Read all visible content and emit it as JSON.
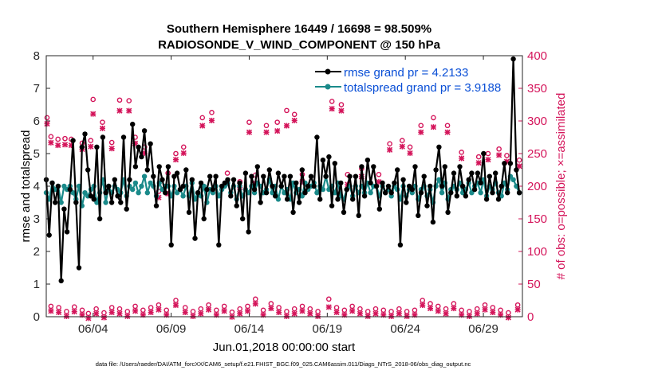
{
  "chart_data": {
    "type": "line",
    "title": "Southern Hemisphere 16449 / 16698 = 98.509%",
    "subtitle": "RADIOSONDE_V_WIND_COMPONENT @ 150 hPa",
    "xlabel": "Jun.01,2018 00:00:00 start",
    "ylabel_left": "rmse and totalspread",
    "ylabel_right": "# of obs: o=possible; ×=assimilated",
    "footer": "data file: /Users/raeder/DAI/ATM_forcXX/CAM6_setup/f.e21.FHIST_BGC.f09_025.CAM6assim.011/Diags_NTrS_2018-06/obs_diag_output.nc",
    "xlim": [
      1,
      31.5
    ],
    "ylim_left": [
      0,
      8
    ],
    "ylim_right": [
      0,
      400
    ],
    "x_ticks": [
      {
        "value": 4,
        "label": "06/04"
      },
      {
        "value": 9,
        "label": "06/09"
      },
      {
        "value": 14,
        "label": "06/14"
      },
      {
        "value": 19,
        "label": "06/19"
      },
      {
        "value": 24,
        "label": "06/24"
      },
      {
        "value": 29,
        "label": "06/29"
      }
    ],
    "y_left_ticks": [
      "0",
      "1",
      "2",
      "3",
      "4",
      "5",
      "6",
      "7",
      "8"
    ],
    "y_right_ticks": [
      "0",
      "50",
      "100",
      "150",
      "200",
      "250",
      "300",
      "350",
      "400"
    ],
    "colors": {
      "rmse": "#000000",
      "totalspread": "#1a8a8a",
      "obs": "#d4145a",
      "legend_text": "#0a4fd6"
    },
    "legend_position": "top-right",
    "series": [
      {
        "name": "rmse grand pr = 4.2133",
        "axis": "left",
        "values": [
          4.2,
          2.5,
          4.1,
          3.5,
          4.0,
          1.1,
          3.3,
          2.6,
          3.9,
          5.4,
          3.5,
          1.5,
          5.2,
          5.6,
          4.5,
          3.7,
          3.6,
          5.2,
          3.0,
          5.5,
          3.8,
          4.0,
          3.5,
          4.2,
          3.7,
          3.5,
          5.5,
          3.3,
          4.2,
          5.9,
          4.6,
          5.2,
          4.9,
          5.7,
          4.5,
          5.3,
          4.3,
          3.4,
          4.6,
          4.2,
          3.8,
          4.6,
          2.2,
          4.3,
          4.4,
          3.9,
          4.0,
          4.5,
          3.2,
          4.2,
          2.4,
          3.8,
          4.1,
          3.0,
          3.9,
          4.3,
          3.9,
          4.3,
          2.2,
          4.0,
          4.1,
          4.2,
          3.7,
          4.2,
          3.4,
          4.1,
          3.0,
          4.4,
          2.6,
          4.3,
          3.9,
          4.6,
          3.5,
          4.3,
          3.8,
          4.5,
          4.0,
          3.7,
          4.4,
          4.0,
          4.3,
          3.6,
          4.3,
          3.2,
          4.1,
          3.5,
          4.5,
          3.8,
          4.0,
          4.3,
          4.0,
          5.5,
          3.6,
          4.8,
          4.3,
          4.9,
          3.4,
          4.7,
          3.6,
          4.1,
          3.2,
          3.9,
          4.3,
          3.6,
          4.3,
          3.1,
          4.6,
          3.7,
          4.8,
          4.1,
          4.6,
          4.0,
          3.3,
          4.1,
          3.8,
          4.0,
          3.8,
          4.1,
          4.5,
          2.2,
          4.2,
          3.5,
          4.0,
          3.9,
          4.6,
          3.1,
          3.8,
          4.3,
          3.4,
          4.0,
          2.9,
          4.5,
          5.2,
          4.0,
          4.6,
          3.2,
          3.8,
          4.4,
          3.7,
          4.6,
          4.0,
          3.7,
          4.2,
          4.4,
          3.9,
          4.4,
          4.1,
          5.0,
          3.6,
          4.3,
          3.8,
          4.4,
          3.6,
          4.0,
          4.7,
          3.8,
          4.7,
          7.9,
          4.5,
          3.8
        ]
      },
      {
        "name": "totalspread grand pr = 3.9188",
        "axis": "left",
        "values": [
          3.8,
          3.6,
          4.1,
          3.9,
          4.0,
          3.5,
          4.0,
          3.9,
          4.0,
          3.8,
          3.6,
          4.0,
          3.4,
          3.8,
          3.7,
          3.9,
          4.0,
          3.5,
          3.8,
          4.2,
          3.5,
          4.0,
          3.8,
          4.0,
          3.9,
          3.8,
          4.2,
          3.7,
          4.0,
          3.9,
          4.1,
          3.8,
          4.0,
          4.3,
          3.8,
          4.1,
          4.0,
          3.7,
          4.1,
          3.9,
          4.0,
          4.0,
          3.7,
          4.0,
          3.8,
          3.9,
          3.7,
          4.0,
          3.7,
          4.1,
          3.6,
          3.8,
          3.7,
          4.0,
          3.5,
          3.9,
          3.8,
          4.0,
          3.7,
          3.9,
          4.0,
          4.1,
          3.8,
          4.0,
          3.6,
          4.0,
          3.7,
          3.9,
          3.8,
          4.0,
          3.8,
          4.1,
          4.0,
          3.8,
          3.9,
          4.2,
          3.8,
          4.0,
          3.6,
          4.0,
          3.8,
          3.9,
          3.6,
          4.1,
          3.8,
          3.9,
          3.7,
          4.1,
          3.9,
          4.0,
          4.1,
          3.8,
          4.0,
          3.9,
          4.3,
          3.9,
          4.0,
          3.8,
          4.1,
          3.7,
          3.6,
          3.9,
          4.0,
          3.7,
          4.0,
          3.8,
          4.0,
          3.8,
          4.1,
          3.8,
          4.0,
          4.0,
          3.7,
          4.0,
          3.8,
          3.9,
          3.7,
          4.0,
          3.9,
          3.6,
          4.0,
          3.7,
          3.9,
          3.8,
          4.0,
          3.6,
          3.9,
          4.0,
          3.7,
          3.9,
          3.5,
          4.0,
          4.2,
          3.8,
          4.1,
          3.6,
          3.9,
          4.0,
          3.9,
          4.1,
          3.8,
          3.9,
          4.1,
          3.8,
          4.0,
          4.1,
          3.8,
          4.2,
          3.7,
          4.0,
          3.9,
          4.1,
          3.8,
          3.7,
          4.1,
          3.9,
          4.3,
          4.2,
          4.0,
          3.8
        ]
      }
    ],
    "obs_points": [
      {
        "x": 1.05,
        "possible": 305,
        "assimilated": 303
      },
      {
        "x": 1.3,
        "possible": 276,
        "assimilated": 274
      },
      {
        "x": 1.75,
        "possible": 272,
        "assimilated": 270
      },
      {
        "x": 2.2,
        "possible": 273,
        "assimilated": 271
      },
      {
        "x": 2.6,
        "possible": 272,
        "assimilated": 270
      },
      {
        "x": 3.3,
        "possible": 266,
        "assimilated": 264
      },
      {
        "x": 3.85,
        "possible": 270,
        "assimilated": 268
      },
      {
        "x": 4.0,
        "possible": 333,
        "assimilated": 318
      },
      {
        "x": 4.6,
        "possible": 298,
        "assimilated": 296
      },
      {
        "x": 5.2,
        "possible": 267,
        "assimilated": 265
      },
      {
        "x": 5.7,
        "possible": 332,
        "assimilated": 323
      },
      {
        "x": 6.3,
        "possible": 331,
        "assimilated": 323
      },
      {
        "x": 6.7,
        "possible": 275,
        "assimilated": 273
      },
      {
        "x": 7.3,
        "possible": 260,
        "assimilated": 258
      },
      {
        "x": 8.2,
        "possible": 192,
        "assimilated": 190
      },
      {
        "x": 8.8,
        "possible": 220,
        "assimilated": 196
      },
      {
        "x": 9.3,
        "possible": 250,
        "assimilated": 248
      },
      {
        "x": 9.8,
        "possible": 260,
        "assimilated": 258
      },
      {
        "x": 11.0,
        "possible": 305,
        "assimilated": 300
      },
      {
        "x": 11.6,
        "possible": 313,
        "assimilated": 308
      },
      {
        "x": 12.6,
        "possible": 220,
        "assimilated": 212
      },
      {
        "x": 13.4,
        "possible": 207,
        "assimilated": 205
      },
      {
        "x": 14.0,
        "possible": 298,
        "assimilated": 290
      },
      {
        "x": 14.4,
        "possible": 217,
        "assimilated": 212
      },
      {
        "x": 15.1,
        "possible": 293,
        "assimilated": 290
      },
      {
        "x": 15.8,
        "possible": 298,
        "assimilated": 292
      },
      {
        "x": 16.4,
        "possible": 316,
        "assimilated": 300
      },
      {
        "x": 16.9,
        "possible": 310,
        "assimilated": 308
      },
      {
        "x": 17.4,
        "possible": 218,
        "assimilated": 214
      },
      {
        "x": 19.3,
        "possible": 330,
        "assimilated": 326
      },
      {
        "x": 19.9,
        "possible": 325,
        "assimilated": 323
      },
      {
        "x": 20.3,
        "possible": 218,
        "assimilated": 210
      },
      {
        "x": 21.2,
        "possible": 227,
        "assimilated": 222
      },
      {
        "x": 22.3,
        "possible": 218,
        "assimilated": 214
      },
      {
        "x": 23.0,
        "possible": 265,
        "assimilated": 263
      },
      {
        "x": 23.8,
        "possible": 270,
        "assimilated": 268
      },
      {
        "x": 24.3,
        "possible": 260,
        "assimilated": 258
      },
      {
        "x": 25.0,
        "possible": 293,
        "assimilated": 290
      },
      {
        "x": 25.8,
        "possible": 305,
        "assimilated": 298
      },
      {
        "x": 26.7,
        "possible": 293,
        "assimilated": 290
      },
      {
        "x": 27.6,
        "possible": 252,
        "assimilated": 250
      },
      {
        "x": 28.7,
        "possible": 245,
        "assimilated": 243
      },
      {
        "x": 29.3,
        "possible": 250,
        "assimilated": 248
      },
      {
        "x": 30.0,
        "possible": 257,
        "assimilated": 255
      },
      {
        "x": 30.5,
        "possible": 247,
        "assimilated": 245
      },
      {
        "x": 31.3,
        "possible": 240,
        "assimilated": 238
      },
      {
        "x": 1.3,
        "possible": 16,
        "assimilated": 16
      },
      {
        "x": 1.8,
        "possible": 14,
        "assimilated": 14
      },
      {
        "x": 2.3,
        "possible": 8,
        "assimilated": 8
      },
      {
        "x": 2.8,
        "possible": 15,
        "assimilated": 15
      },
      {
        "x": 3.3,
        "possible": 10,
        "assimilated": 10
      },
      {
        "x": 3.7,
        "possible": 5,
        "assimilated": 5
      },
      {
        "x": 4.2,
        "possible": 12,
        "assimilated": 12
      },
      {
        "x": 4.7,
        "possible": 6,
        "assimilated": 6
      },
      {
        "x": 5.2,
        "possible": 14,
        "assimilated": 14
      },
      {
        "x": 5.7,
        "possible": 12,
        "assimilated": 12
      },
      {
        "x": 6.2,
        "possible": 8,
        "assimilated": 8
      },
      {
        "x": 6.7,
        "possible": 16,
        "assimilated": 16
      },
      {
        "x": 7.2,
        "possible": 10,
        "assimilated": 10
      },
      {
        "x": 7.7,
        "possible": 14,
        "assimilated": 14
      },
      {
        "x": 8.2,
        "possible": 18,
        "assimilated": 18
      },
      {
        "x": 8.7,
        "possible": 10,
        "assimilated": 10
      },
      {
        "x": 9.3,
        "possible": 25,
        "assimilated": 25
      },
      {
        "x": 9.9,
        "possible": 14,
        "assimilated": 14
      },
      {
        "x": 10.4,
        "possible": 8,
        "assimilated": 8
      },
      {
        "x": 10.9,
        "possible": 12,
        "assimilated": 12
      },
      {
        "x": 11.4,
        "possible": 18,
        "assimilated": 18
      },
      {
        "x": 11.9,
        "possible": 10,
        "assimilated": 10
      },
      {
        "x": 12.4,
        "possible": 16,
        "assimilated": 16
      },
      {
        "x": 12.9,
        "possible": 7,
        "assimilated": 7
      },
      {
        "x": 13.4,
        "possible": 12,
        "assimilated": 12
      },
      {
        "x": 13.9,
        "possible": 16,
        "assimilated": 16
      },
      {
        "x": 14.4,
        "possible": 27,
        "assimilated": 27
      },
      {
        "x": 14.9,
        "possible": 10,
        "assimilated": 10
      },
      {
        "x": 15.4,
        "possible": 20,
        "assimilated": 20
      },
      {
        "x": 15.9,
        "possible": 14,
        "assimilated": 14
      },
      {
        "x": 16.4,
        "possible": 8,
        "assimilated": 8
      },
      {
        "x": 16.9,
        "possible": 12,
        "assimilated": 12
      },
      {
        "x": 17.4,
        "possible": 16,
        "assimilated": 16
      },
      {
        "x": 17.9,
        "possible": 12,
        "assimilated": 12
      },
      {
        "x": 18.4,
        "possible": 8,
        "assimilated": 8
      },
      {
        "x": 19.1,
        "possible": 27,
        "assimilated": 22
      },
      {
        "x": 19.6,
        "possible": 14,
        "assimilated": 14
      },
      {
        "x": 20.1,
        "possible": 10,
        "assimilated": 10
      },
      {
        "x": 20.6,
        "possible": 16,
        "assimilated": 16
      },
      {
        "x": 21.1,
        "possible": 12,
        "assimilated": 12
      },
      {
        "x": 21.6,
        "possible": 8,
        "assimilated": 8
      },
      {
        "x": 22.1,
        "possible": 12,
        "assimilated": 12
      },
      {
        "x": 22.6,
        "possible": 10,
        "assimilated": 10
      },
      {
        "x": 23.1,
        "possible": 8,
        "assimilated": 8
      },
      {
        "x": 23.6,
        "possible": 12,
        "assimilated": 12
      },
      {
        "x": 24.1,
        "possible": 8,
        "assimilated": 8
      },
      {
        "x": 24.6,
        "possible": 10,
        "assimilated": 10
      },
      {
        "x": 25.1,
        "possible": 25,
        "assimilated": 25
      },
      {
        "x": 25.6,
        "possible": 20,
        "assimilated": 20
      },
      {
        "x": 26.1,
        "possible": 16,
        "assimilated": 16
      },
      {
        "x": 26.6,
        "possible": 12,
        "assimilated": 12
      },
      {
        "x": 27.1,
        "possible": 20,
        "assimilated": 20
      },
      {
        "x": 27.6,
        "possible": 10,
        "assimilated": 10
      },
      {
        "x": 28.1,
        "possible": 8,
        "assimilated": 8
      },
      {
        "x": 28.6,
        "possible": 12,
        "assimilated": 12
      },
      {
        "x": 29.1,
        "possible": 18,
        "assimilated": 18
      },
      {
        "x": 29.6,
        "possible": 14,
        "assimilated": 14
      },
      {
        "x": 30.1,
        "possible": 10,
        "assimilated": 10
      },
      {
        "x": 30.6,
        "possible": 6,
        "assimilated": 6
      },
      {
        "x": 31.2,
        "possible": 18,
        "assimilated": 18
      }
    ]
  }
}
